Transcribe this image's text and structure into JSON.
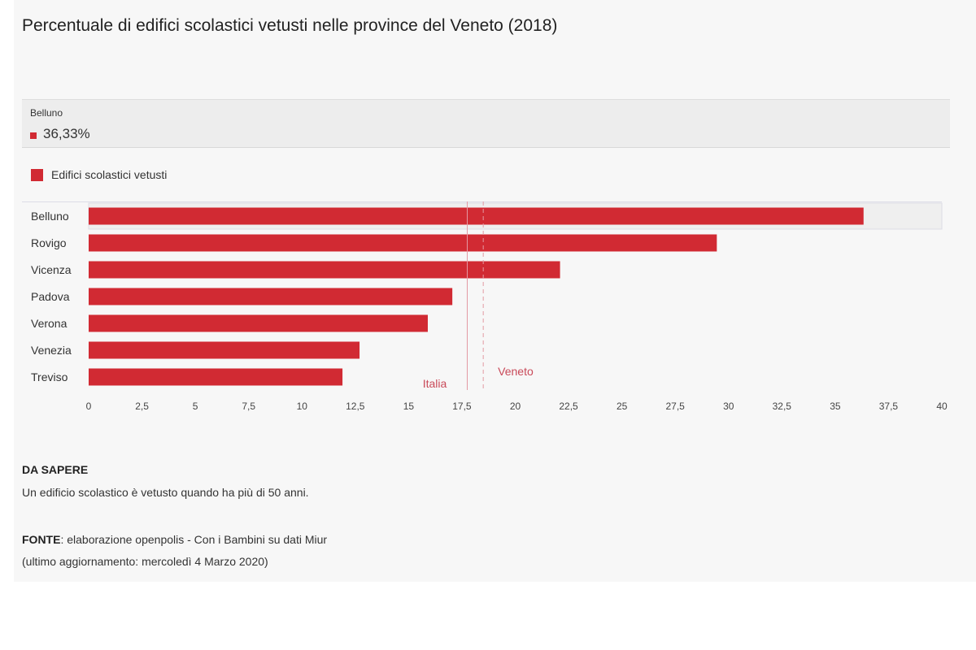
{
  "title": "Percentuale di edifici scolastici vetusti nelle province del Veneto (2018)",
  "colors": {
    "bar": "#d12a33",
    "reference": "#c94a59",
    "highlight_bg": "#efefef",
    "highlight_border": "#dcdce6"
  },
  "tooltip": {
    "category": "Belluno",
    "value_label": "36,33%"
  },
  "chart_data": {
    "type": "bar",
    "orientation": "horizontal",
    "categories": [
      "Belluno",
      "Rovigo",
      "Vicenza",
      "Padova",
      "Verona",
      "Venezia",
      "Treviso"
    ],
    "series": [
      {
        "name": "Edifici scolastici vetusti",
        "values": [
          36.33,
          29.45,
          22.1,
          17.05,
          15.9,
          12.7,
          11.9
        ]
      }
    ],
    "xlim": [
      0,
      40
    ],
    "xticks": [
      0,
      2.5,
      5,
      7.5,
      10,
      12.5,
      15,
      17.5,
      20,
      22.5,
      25,
      27.5,
      30,
      32.5,
      35,
      37.5,
      40
    ],
    "xtick_labels": [
      "0",
      "2,5",
      "5",
      "7,5",
      "10",
      "12,5",
      "15",
      "17,5",
      "20",
      "22,5",
      "25",
      "27,5",
      "30",
      "32,5",
      "35",
      "37,5",
      "40"
    ],
    "reference_lines": [
      {
        "label": "Italia",
        "value": 17.75,
        "style": "solid"
      },
      {
        "label": "Veneto",
        "value": 18.5,
        "style": "dashed"
      }
    ],
    "highlighted_category": "Belluno",
    "legend_position": "top-left",
    "grid": false
  },
  "notes": {
    "heading": "DA SAPERE",
    "text": "Un edificio scolastico è vetusto quando ha più di 50 anni.",
    "source_label": "FONTE",
    "source_text": ": elaborazione openpolis - Con i Bambini su dati Miur",
    "updated": "(ultimo aggiornamento: mercoledì 4 Marzo 2020)"
  }
}
